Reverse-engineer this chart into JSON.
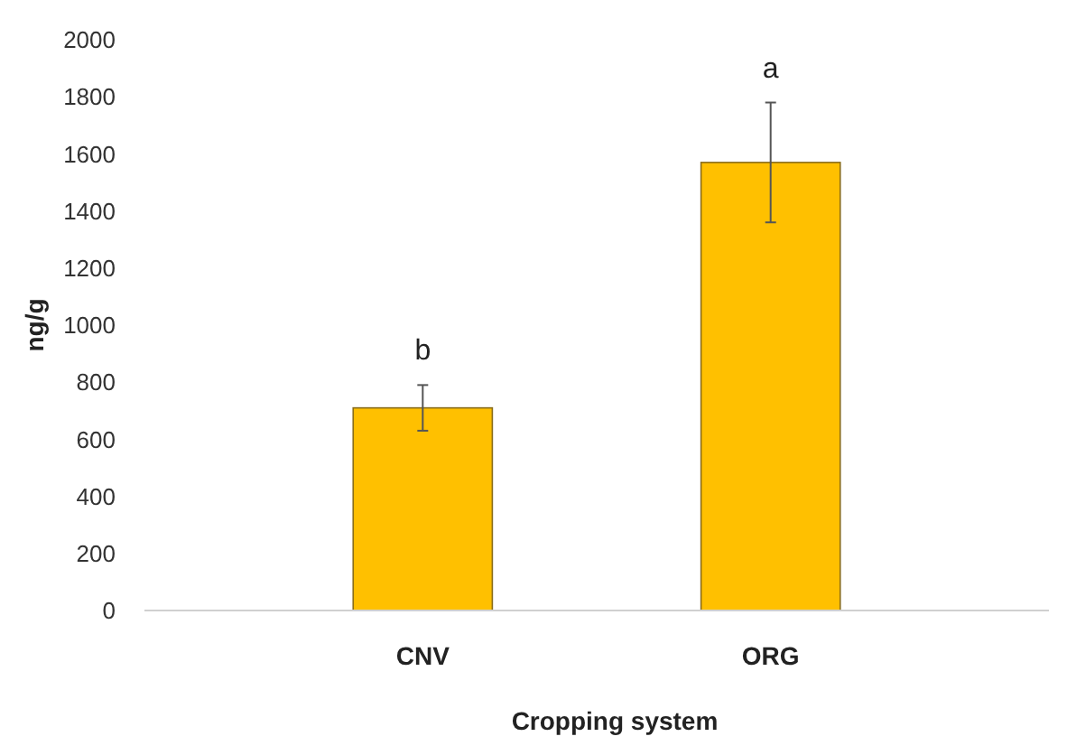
{
  "chart_data": {
    "type": "bar",
    "xlabel": "Cropping system",
    "ylabel": "ng/g",
    "categories": [
      "CNV",
      "ORG"
    ],
    "values": [
      710,
      1570
    ],
    "errors": [
      [
        630,
        790
      ],
      [
        1360,
        1780
      ]
    ],
    "color": "#ffc000",
    "ylim": [
      0,
      2000
    ],
    "yticks": [
      0,
      200,
      400,
      600,
      800,
      1000,
      1200,
      1400,
      1600,
      1800,
      2000
    ],
    "grid": false,
    "annotations": [
      "b",
      "a"
    ]
  }
}
